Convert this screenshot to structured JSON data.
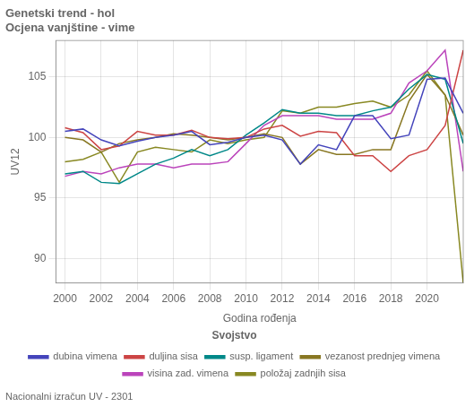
{
  "chart_data": {
    "type": "line",
    "title": "Genetski trend - hol",
    "subtitle": "Ocjena vanjštine - vime",
    "xlabel": "Godina rođenja",
    "ylabel": "UV12",
    "annotations": [
      "Nacionalni izračun UV - 2301"
    ],
    "legend_title": "Svojstvo",
    "legend": "bottom",
    "grid": true,
    "xlim": [
      1999.5,
      2022.0
    ],
    "xticks": [
      2000,
      2002,
      2004,
      2006,
      2008,
      2010,
      2012,
      2014,
      2016,
      2018,
      2020
    ],
    "ylim": [
      88,
      108
    ],
    "yticks": [
      90,
      95,
      100,
      105
    ],
    "x": [
      2000,
      2001,
      2002,
      2003,
      2004,
      2005,
      2006,
      2007,
      2008,
      2009,
      2010,
      2011,
      2012,
      2013,
      2014,
      2015,
      2016,
      2017,
      2018,
      2019,
      2020,
      2021,
      2022
    ],
    "series": [
      {
        "name": "dubina vimena",
        "color": "#4444bb",
        "values": [
          100.5,
          100.7,
          99.8,
          99.3,
          99.7,
          100.0,
          100.2,
          100.5,
          99.4,
          99.6,
          100.0,
          100.2,
          99.8,
          97.8,
          99.4,
          99.0,
          101.8,
          101.8,
          99.9,
          100.2,
          104.8,
          104.9,
          102.0
        ]
      },
      {
        "name": "duljina sisa",
        "color": "#cc4444",
        "values": [
          100.8,
          100.4,
          99.0,
          99.3,
          100.5,
          100.2,
          100.2,
          100.6,
          100.0,
          99.9,
          100.0,
          100.7,
          101.0,
          100.1,
          100.5,
          100.4,
          98.5,
          98.5,
          97.2,
          98.5,
          99.0,
          101.0,
          107.2
        ]
      },
      {
        "name": "susp. ligament",
        "color": "#008888",
        "values": [
          97.0,
          97.2,
          96.3,
          96.2,
          97.0,
          97.8,
          98.3,
          99.0,
          98.5,
          99.0,
          100.2,
          101.2,
          102.3,
          102.0,
          102.0,
          101.8,
          101.8,
          102.2,
          102.5,
          104.0,
          105.2,
          104.8,
          99.5
        ]
      },
      {
        "name": "vezanost prednjeg vimena",
        "color": "#887722",
        "values": [
          100.0,
          99.8,
          98.8,
          99.5,
          99.8,
          100.0,
          100.3,
          100.2,
          100.0,
          99.8,
          100.0,
          100.3,
          100.0,
          97.8,
          99.0,
          98.6,
          98.6,
          99.0,
          99.0,
          103.0,
          105.2,
          103.5,
          100.2
        ]
      },
      {
        "name": "visina zad. vimena",
        "color": "#bb44bb",
        "values": [
          96.8,
          97.2,
          97.0,
          97.5,
          97.8,
          97.8,
          97.5,
          97.8,
          97.8,
          98.0,
          99.5,
          101.0,
          101.8,
          101.8,
          101.8,
          101.5,
          101.5,
          101.5,
          102.0,
          104.5,
          105.5,
          107.2,
          97.2
        ]
      },
      {
        "name": "položaj zadnjih sisa",
        "color": "#888822",
        "values": [
          98.0,
          98.2,
          98.8,
          96.3,
          98.8,
          99.2,
          99.0,
          98.8,
          99.8,
          99.5,
          99.8,
          100.0,
          102.2,
          102.0,
          102.5,
          102.5,
          102.8,
          103.0,
          102.5,
          103.5,
          105.5,
          103.5,
          88.0
        ]
      }
    ]
  }
}
